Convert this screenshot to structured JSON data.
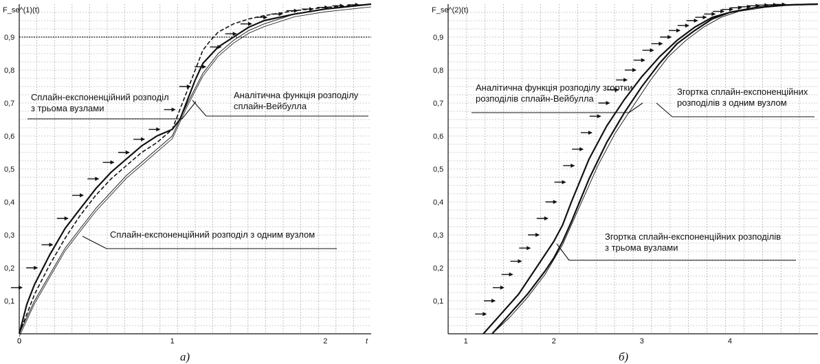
{
  "chart_data": [
    {
      "type": "line",
      "ylabel": "F_se^(1)(t)",
      "xlabel": "t",
      "caption": "а)",
      "xlim": [
        0,
        2.3
      ],
      "ylim": [
        0,
        1.0
      ],
      "x_ticks": [
        "0",
        "1",
        "2"
      ],
      "y_ticks": [
        "0,1",
        "0,2",
        "0,3",
        "0,4",
        "0,5",
        "0,6",
        "0,7",
        "0,8",
        "0,9"
      ],
      "reference_line_y": 0.9,
      "grid": true,
      "series": [
        {
          "style": "solid-thick",
          "x": [
            0,
            0.05,
            0.1,
            0.2,
            0.3,
            0.4,
            0.5,
            0.6,
            0.7,
            0.8,
            0.9,
            1.0,
            1.05,
            1.1,
            1.15,
            1.2,
            1.3,
            1.4,
            1.5,
            1.6,
            1.8,
            2.0,
            2.2,
            2.3
          ],
          "y": [
            0,
            0.09,
            0.15,
            0.24,
            0.32,
            0.38,
            0.44,
            0.49,
            0.53,
            0.57,
            0.6,
            0.62,
            0.65,
            0.71,
            0.77,
            0.82,
            0.87,
            0.9,
            0.93,
            0.95,
            0.97,
            0.985,
            0.995,
            1.0
          ]
        },
        {
          "style": "dashed",
          "x": [
            0,
            0.1,
            0.2,
            0.3,
            0.4,
            0.5,
            0.6,
            0.7,
            0.8,
            0.9,
            1.0,
            1.05,
            1.1,
            1.15,
            1.2,
            1.25,
            1.3,
            1.4,
            1.5,
            1.6,
            1.8,
            2.0,
            2.3
          ],
          "y": [
            0,
            0.12,
            0.21,
            0.29,
            0.36,
            0.42,
            0.47,
            0.51,
            0.55,
            0.58,
            0.62,
            0.68,
            0.74,
            0.8,
            0.86,
            0.89,
            0.915,
            0.94,
            0.955,
            0.965,
            0.98,
            0.99,
            1.0
          ]
        },
        {
          "style": "solid-thin-double",
          "x": [
            0,
            0.1,
            0.2,
            0.3,
            0.4,
            0.5,
            0.6,
            0.7,
            0.8,
            0.9,
            1.0,
            1.1,
            1.2,
            1.3,
            1.4,
            1.5,
            1.6,
            1.8,
            2.0,
            2.3
          ],
          "y": [
            0,
            0.1,
            0.18,
            0.26,
            0.32,
            0.38,
            0.43,
            0.48,
            0.52,
            0.56,
            0.6,
            0.7,
            0.79,
            0.85,
            0.89,
            0.92,
            0.94,
            0.97,
            0.985,
            1.0
          ]
        },
        {
          "style": "step-arrows",
          "x": [
            0,
            0.1,
            0.2,
            0.3,
            0.4,
            0.5,
            0.6,
            0.7,
            0.8,
            0.9,
            1.0,
            1.1,
            1.2,
            1.3,
            1.4,
            1.5,
            1.6,
            1.7,
            1.8,
            1.9,
            2.0,
            2.1,
            2.2
          ],
          "y": [
            0.14,
            0.2,
            0.27,
            0.35,
            0.42,
            0.47,
            0.52,
            0.55,
            0.59,
            0.62,
            0.68,
            0.75,
            0.81,
            0.87,
            0.91,
            0.94,
            0.96,
            0.97,
            0.98,
            0.985,
            0.99,
            0.995,
            0.998
          ]
        }
      ],
      "annotations": [
        {
          "lines": [
            "Сплайн-експоненційний розподіл",
            "з трьома вузлами"
          ]
        },
        {
          "lines": [
            "Аналітична функція розподілу",
            "сплайн-Вейбулла"
          ]
        },
        {
          "lines": [
            "Сплайн-експоненційний розподіл з одним вузлом"
          ]
        }
      ]
    },
    {
      "type": "line",
      "ylabel": "F_se^(2)(t)",
      "xlabel": "",
      "caption": "б)",
      "xlim": [
        0.8,
        5.0
      ],
      "ylim": [
        0,
        1.0
      ],
      "x_ticks": [
        "1",
        "2",
        "3",
        "4"
      ],
      "y_ticks": [
        "0,1",
        "0,2",
        "0,3",
        "0,4",
        "0,5",
        "0,6",
        "0,7",
        "0,8",
        "0,9"
      ],
      "grid": true,
      "series": [
        {
          "style": "solid-thick",
          "x": [
            1.2,
            1.4,
            1.6,
            1.8,
            2.0,
            2.1,
            2.2,
            2.4,
            2.6,
            2.8,
            3.0,
            3.2,
            3.4,
            3.6,
            3.8,
            4.0,
            4.3,
            4.6,
            5.0
          ],
          "y": [
            0.0,
            0.06,
            0.12,
            0.2,
            0.28,
            0.33,
            0.4,
            0.53,
            0.63,
            0.71,
            0.78,
            0.84,
            0.89,
            0.93,
            0.96,
            0.975,
            0.99,
            0.997,
            1.0
          ]
        },
        {
          "style": "solid-thick",
          "x": [
            1.3,
            1.5,
            1.7,
            1.9,
            2.0,
            2.1,
            2.2,
            2.4,
            2.6,
            2.8,
            3.0,
            3.2,
            3.4,
            3.6,
            3.8,
            4.0,
            4.3,
            4.6,
            5.0
          ],
          "y": [
            0.0,
            0.06,
            0.12,
            0.19,
            0.23,
            0.28,
            0.34,
            0.47,
            0.58,
            0.67,
            0.75,
            0.82,
            0.88,
            0.92,
            0.955,
            0.975,
            0.99,
            0.997,
            1.0
          ]
        },
        {
          "style": "solid-thin",
          "x": [
            1.3,
            1.5,
            1.7,
            1.9,
            2.1,
            2.3,
            2.5,
            2.7,
            2.9,
            3.1,
            3.3,
            3.5,
            3.7,
            3.9,
            4.1,
            4.4,
            4.7,
            5.0
          ],
          "y": [
            0.0,
            0.05,
            0.11,
            0.18,
            0.27,
            0.39,
            0.51,
            0.61,
            0.69,
            0.77,
            0.84,
            0.89,
            0.93,
            0.96,
            0.978,
            0.99,
            0.997,
            1.0
          ]
        },
        {
          "style": "step-arrows",
          "x": [
            1.2,
            1.3,
            1.4,
            1.5,
            1.6,
            1.7,
            1.8,
            1.9,
            2.0,
            2.1,
            2.2,
            2.3,
            2.4,
            2.5,
            2.6,
            2.7,
            2.8,
            2.9,
            3.0,
            3.1,
            3.2,
            3.3,
            3.4,
            3.5,
            3.6,
            3.7,
            3.8,
            3.9,
            4.0,
            4.1,
            4.2,
            4.3,
            4.4,
            4.5,
            4.6
          ],
          "y": [
            0.06,
            0.1,
            0.14,
            0.18,
            0.22,
            0.26,
            0.3,
            0.35,
            0.4,
            0.46,
            0.51,
            0.56,
            0.61,
            0.66,
            0.7,
            0.74,
            0.77,
            0.8,
            0.83,
            0.86,
            0.88,
            0.9,
            0.92,
            0.935,
            0.95,
            0.96,
            0.97,
            0.978,
            0.984,
            0.989,
            0.992,
            0.995,
            0.997,
            0.998,
            0.999
          ]
        }
      ],
      "annotations": [
        {
          "lines": [
            "Аналітична функція розподілу згортки",
            "розподілів сплайн-Вейбулла"
          ]
        },
        {
          "lines": [
            "Згортка сплайн-експоненційних",
            "розподілів з одним вузлом"
          ]
        },
        {
          "lines": [
            "Згортка сплайн-експоненційних розподілів",
            "з трьома вузлами"
          ]
        }
      ]
    }
  ]
}
